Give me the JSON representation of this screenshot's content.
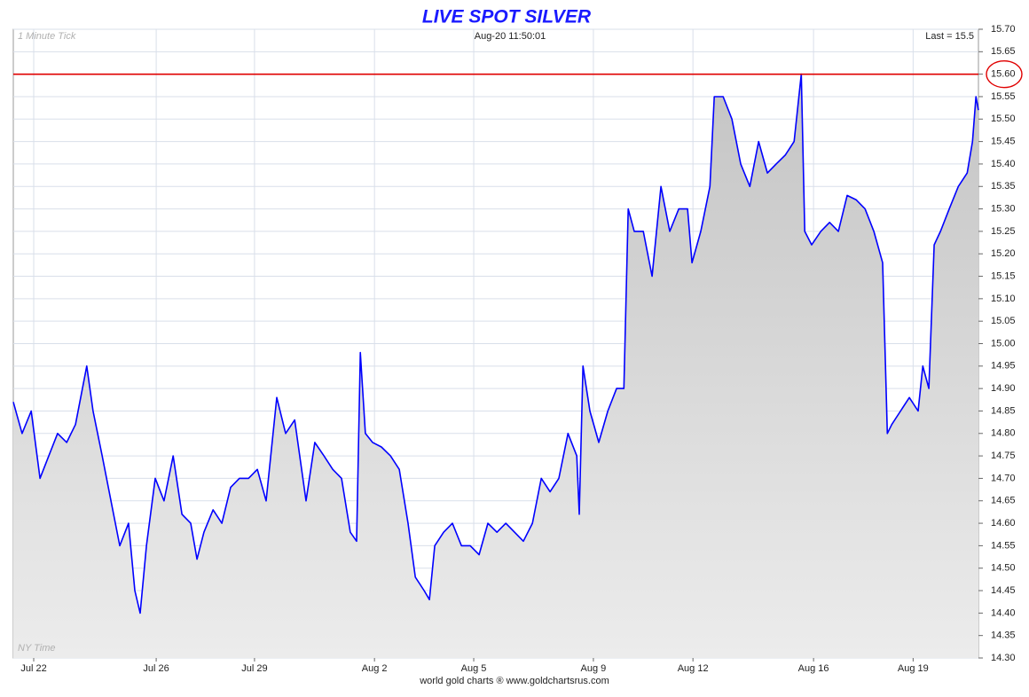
{
  "chart_data": {
    "type": "line",
    "title": "LIVE SPOT SILVER",
    "subtitle": "Aug-20  11:50:01",
    "annotations": [
      "1 Minute Tick",
      "Last = 15.5",
      "NY Time"
    ],
    "source": "world gold charts ® www.goldchartsrus.com",
    "xlim": [
      -0.65,
      30.08
    ],
    "xticks": [
      {
        "value": 0,
        "label": "Jul 22"
      },
      {
        "value": 3.9,
        "label": "Jul 26"
      },
      {
        "value": 7.03,
        "label": "Jul 29"
      },
      {
        "value": 10.85,
        "label": "Aug 2"
      },
      {
        "value": 14.01,
        "label": "Aug 5"
      },
      {
        "value": 17.82,
        "label": "Aug 9"
      },
      {
        "value": 20.99,
        "label": "Aug 12"
      },
      {
        "value": 24.83,
        "label": "Aug 16"
      },
      {
        "value": 28.0,
        "label": "Aug 19"
      }
    ],
    "ylim": [
      14.3,
      15.7
    ],
    "yticks": [
      {
        "value": 14.3,
        "label": "14.30"
      },
      14.35,
      {
        "value": 14.4,
        "label": "14.40"
      },
      14.45,
      {
        "value": 14.5,
        "label": "14.50"
      },
      14.55,
      {
        "value": 14.6,
        "label": "14.60"
      },
      14.65,
      {
        "value": 14.7,
        "label": "14.70"
      },
      14.75,
      {
        "value": 14.8,
        "label": "14.80"
      },
      14.85,
      {
        "value": 14.9,
        "label": "14.90"
      },
      14.95,
      {
        "value": 15.0,
        "label": "15.00"
      },
      15.05,
      {
        "value": 15.1,
        "label": "15.10"
      },
      15.15,
      {
        "value": 15.2,
        "label": "15.20"
      },
      15.25,
      {
        "value": 15.3,
        "label": "15.30"
      },
      15.35,
      {
        "value": 15.4,
        "label": "15.40"
      },
      15.45,
      {
        "value": 15.5,
        "label": "15.50"
      },
      15.55,
      {
        "value": 15.6,
        "label": "15.60"
      },
      15.65,
      {
        "value": 15.7,
        "label": "15.70"
      }
    ],
    "grid": true,
    "reference_line": {
      "value": 15.6,
      "color": "#e00000"
    },
    "series": [
      {
        "name": "Spot Silver",
        "color": "#0000ff",
        "fill": "#d6d6d6",
        "x": [
          -0.65,
          -0.37,
          -0.08,
          0.2,
          0.48,
          0.76,
          1.05,
          1.33,
          1.69,
          1.89,
          2.18,
          2.46,
          2.74,
          3.02,
          3.22,
          3.39,
          3.59,
          3.87,
          4.15,
          4.44,
          4.72,
          5.0,
          5.2,
          5.42,
          5.71,
          5.99,
          6.27,
          6.55,
          6.84,
          7.12,
          7.4,
          7.74,
          8.02,
          8.31,
          8.67,
          8.95,
          9.24,
          9.52,
          9.8,
          10.08,
          10.28,
          10.4,
          10.56,
          10.79,
          11.07,
          11.36,
          11.64,
          11.92,
          12.15,
          12.43,
          12.6,
          12.77,
          13.05,
          13.33,
          13.62,
          13.9,
          14.18,
          14.46,
          14.75,
          15.03,
          15.31,
          15.59,
          15.88,
          16.16,
          16.44,
          16.72,
          17.01,
          17.29,
          17.37,
          17.49,
          17.71,
          17.99,
          18.28,
          18.56,
          18.79,
          18.93,
          19.12,
          19.41,
          19.69,
          19.97,
          20.25,
          20.54,
          20.82,
          20.96,
          21.24,
          21.53,
          21.67,
          21.95,
          22.23,
          22.51,
          22.8,
          23.08,
          23.36,
          23.64,
          23.93,
          24.21,
          24.44,
          24.55,
          24.77,
          25.06,
          25.34,
          25.62,
          25.9,
          26.19,
          26.47,
          26.75,
          27.03,
          27.18,
          27.32,
          27.6,
          27.88,
          28.16,
          28.31,
          28.5,
          28.67,
          28.87,
          29.15,
          29.44,
          29.72,
          29.89,
          30.0,
          30.08
        ],
        "values": [
          14.87,
          14.8,
          14.85,
          14.7,
          14.75,
          14.8,
          14.78,
          14.82,
          14.95,
          14.85,
          14.75,
          14.65,
          14.55,
          14.6,
          14.45,
          14.4,
          14.55,
          14.7,
          14.65,
          14.75,
          14.62,
          14.6,
          14.52,
          14.58,
          14.63,
          14.6,
          14.68,
          14.7,
          14.7,
          14.72,
          14.65,
          14.88,
          14.8,
          14.83,
          14.65,
          14.78,
          14.75,
          14.72,
          14.7,
          14.58,
          14.56,
          14.98,
          14.8,
          14.78,
          14.77,
          14.75,
          14.72,
          14.6,
          14.48,
          14.45,
          14.43,
          14.55,
          14.58,
          14.6,
          14.55,
          14.55,
          14.53,
          14.6,
          14.58,
          14.6,
          14.58,
          14.56,
          14.6,
          14.7,
          14.67,
          14.7,
          14.8,
          14.75,
          14.62,
          14.95,
          14.85,
          14.78,
          14.85,
          14.9,
          14.9,
          15.3,
          15.25,
          15.25,
          15.15,
          15.35,
          15.25,
          15.3,
          15.3,
          15.18,
          15.25,
          15.35,
          15.55,
          15.55,
          15.5,
          15.4,
          15.35,
          15.45,
          15.38,
          15.4,
          15.42,
          15.45,
          15.6,
          15.25,
          15.22,
          15.25,
          15.27,
          15.25,
          15.33,
          15.32,
          15.3,
          15.25,
          15.18,
          14.8,
          14.82,
          14.85,
          14.88,
          14.85,
          14.95,
          14.9,
          15.22,
          15.25,
          15.3,
          15.35,
          15.38,
          15.45,
          15.55,
          15.52
        ]
      }
    ]
  }
}
